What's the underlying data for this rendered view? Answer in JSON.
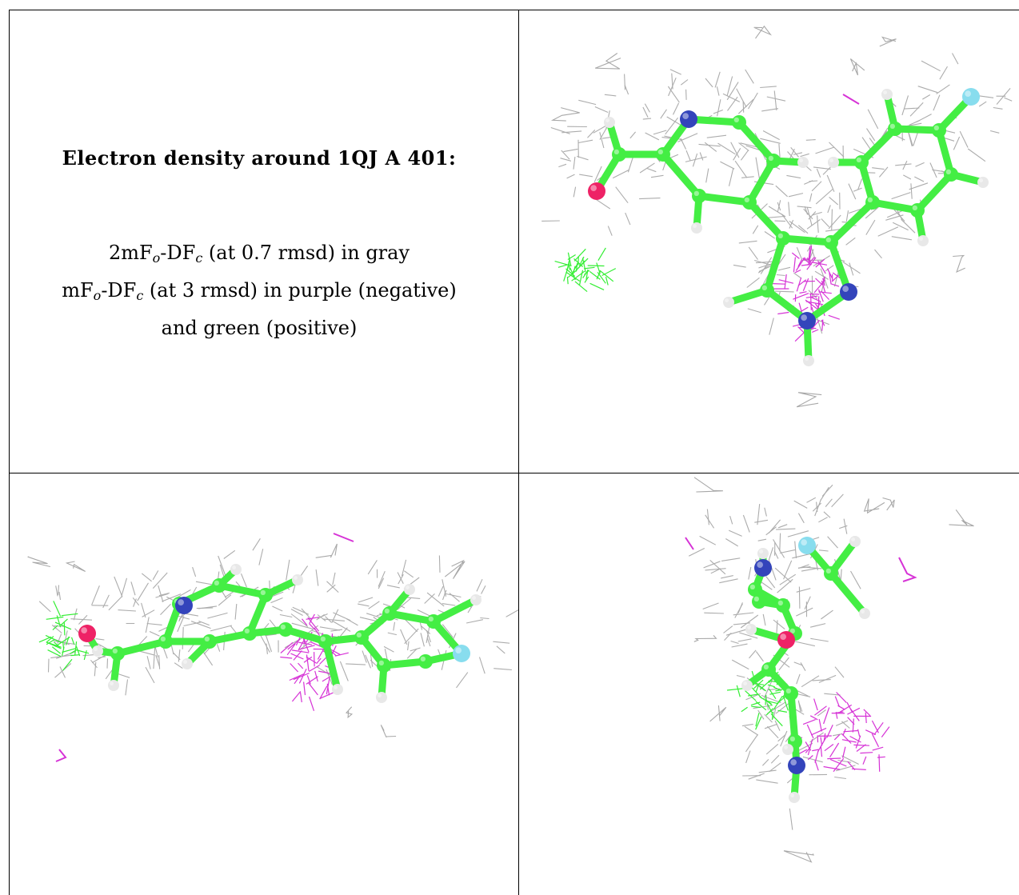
{
  "legend": {
    "title": "Electron density around 1QJ A 401:",
    "line1_prefix": "2mF",
    "line1_sub1": "o",
    "line1_mid": "-DF",
    "line1_sub2": "c",
    "line1_suffix": " (at 0.7 rmsd) in gray",
    "line2_prefix": "mF",
    "line2_sub1": "o",
    "line2_mid": "-DF",
    "line2_sub2": "c",
    "line2_suffix": " (at 3 rmsd) in purple (negative)",
    "line3": "and green (positive)"
  },
  "colors": {
    "mesh_2fofc": "#a8a8a8",
    "mesh_negative": "#d633d6",
    "mesh_positive": "#33ee33",
    "carbon": "#44ee44",
    "nitrogen": "#3344bb",
    "oxygen": "#ee2266",
    "fluorine": "#88ddee",
    "hydrogen": "#e8e8e8"
  },
  "icons": {
    "view_1": "molecule-density-view-icon",
    "view_2": "molecule-density-side-view-icon",
    "view_3": "molecule-density-end-view-icon"
  }
}
